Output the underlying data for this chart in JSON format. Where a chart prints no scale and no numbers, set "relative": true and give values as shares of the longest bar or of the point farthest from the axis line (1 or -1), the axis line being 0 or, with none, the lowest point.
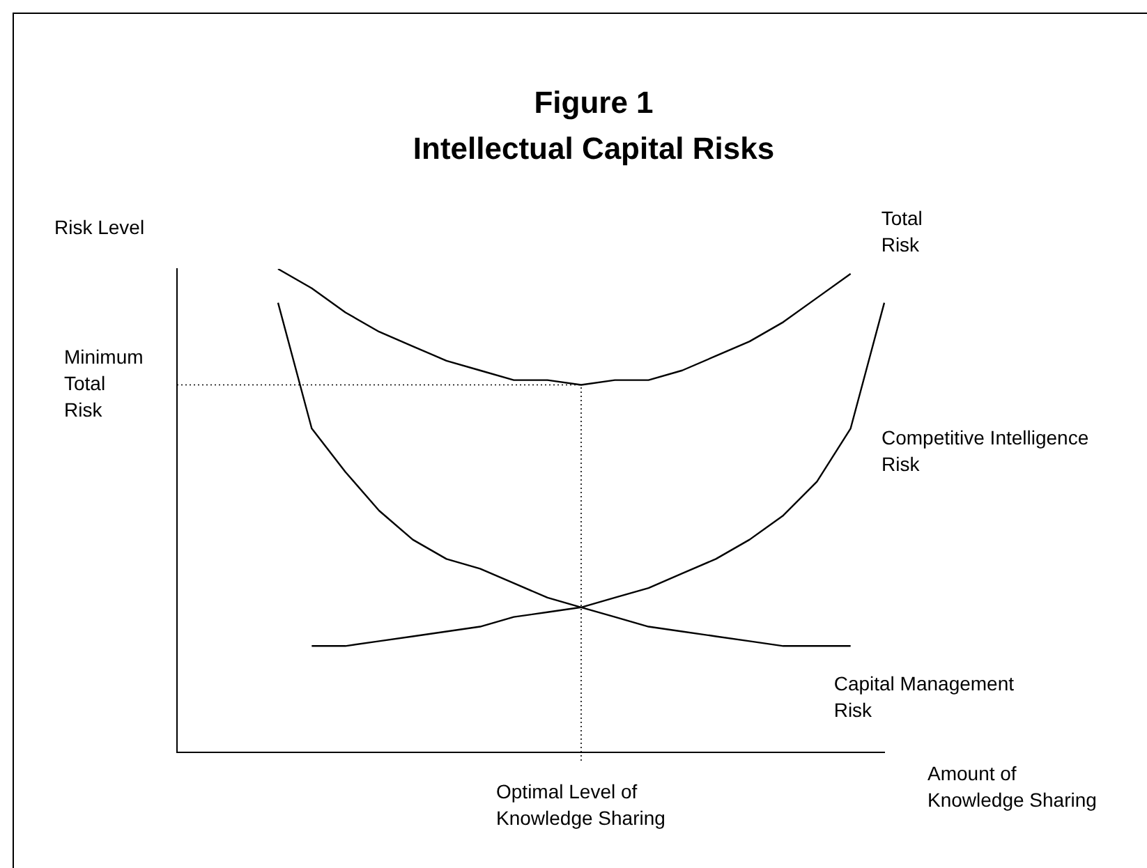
{
  "chart_data": {
    "type": "line",
    "title": "Figure 1",
    "subtitle": "Intellectual Capital Risks",
    "xlabel": "Amount of Knowledge Sharing",
    "ylabel": "Risk Level",
    "relative": true,
    "marker": "none",
    "line_style": "solid",
    "categories": [
      null,
      null,
      null,
      null,
      null,
      null,
      null,
      null,
      null,
      null,
      null,
      null,
      null,
      null,
      null,
      null,
      null,
      null,
      null,
      null,
      null,
      null
    ],
    "series": [
      {
        "name": "Total Risk",
        "color": "#000000",
        "values": [
          null,
          null,
          null,
          1.0,
          0.96,
          0.91,
          0.87,
          0.84,
          0.81,
          0.79,
          0.77,
          0.77,
          0.76,
          0.77,
          0.77,
          0.79,
          0.82,
          0.85,
          0.89,
          0.94,
          0.99,
          null
        ]
      },
      {
        "name": "Competitive Intelligence Risk",
        "color": "#000000",
        "values": [
          null,
          null,
          null,
          null,
          0.22,
          0.22,
          0.23,
          0.24,
          0.25,
          0.26,
          0.28,
          0.29,
          0.3,
          0.32,
          0.34,
          0.37,
          0.4,
          0.44,
          0.49,
          0.56,
          0.67,
          0.93
        ]
      },
      {
        "name": "Capital Management Risk",
        "color": "#000000",
        "values": [
          null,
          null,
          null,
          0.93,
          0.67,
          0.58,
          0.5,
          0.44,
          0.4,
          0.38,
          0.35,
          0.32,
          0.3,
          0.28,
          0.26,
          0.25,
          0.24,
          0.23,
          0.22,
          0.22,
          0.22,
          null
        ]
      }
    ],
    "ref_lines": [
      {
        "axis": "y",
        "value": 0.76,
        "label": "Minimum Total Risk",
        "color": "#000000",
        "line_style": "dotted"
      }
    ],
    "annotations": [
      "Optimal Level of Knowledge Sharing"
    ]
  }
}
